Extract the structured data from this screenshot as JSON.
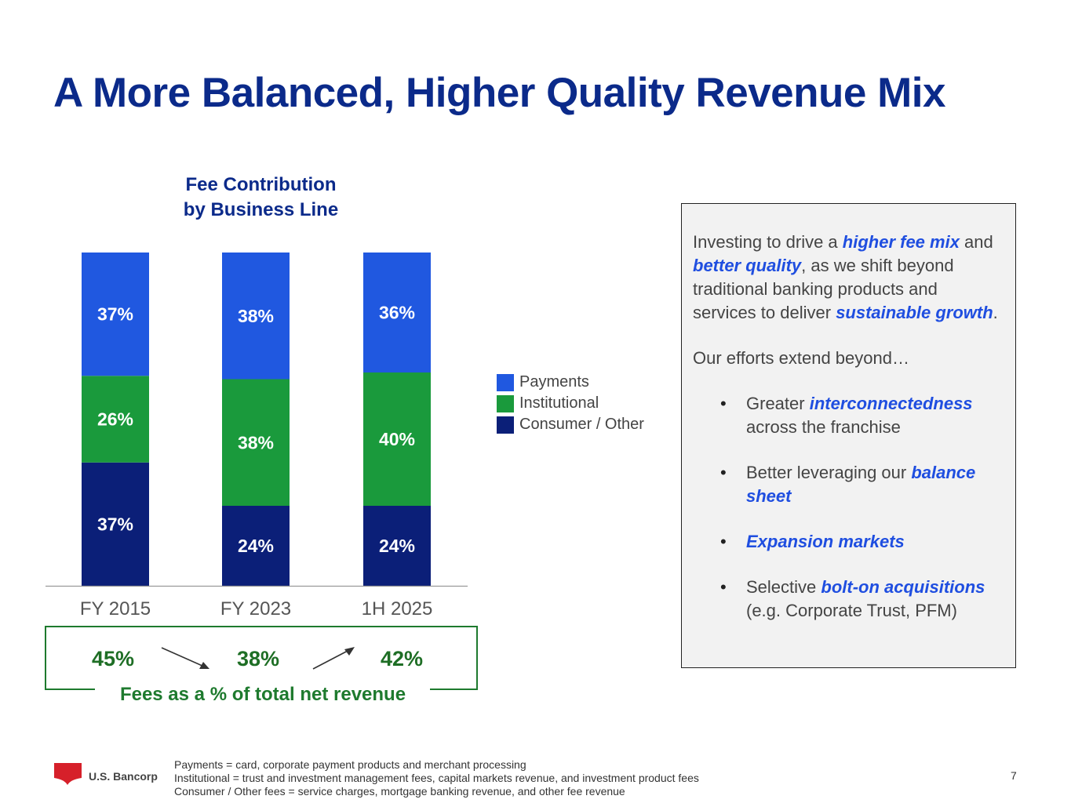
{
  "slide": {
    "title": "A More Balanced, Higher Quality Revenue Mix",
    "page_number": "7"
  },
  "chart_data": {
    "type": "bar",
    "stacked": true,
    "title": "Fee Contribution by Business Line",
    "title_lines": [
      "Fee Contribution",
      "by Business Line"
    ],
    "categories": [
      "FY 2015",
      "FY 2023",
      "1H 2025"
    ],
    "series": [
      {
        "name": "Consumer / Other",
        "color": "#0b1f78",
        "values": [
          37,
          24,
          24
        ],
        "labels": [
          "37%",
          "24%",
          "24%"
        ]
      },
      {
        "name": "Institutional",
        "color": "#1a9a3c",
        "values": [
          26,
          38,
          40
        ],
        "labels": [
          "26%",
          "38%",
          "40%"
        ]
      },
      {
        "name": "Payments",
        "color": "#2058e0",
        "values": [
          37,
          38,
          36
        ],
        "labels": [
          "37%",
          "38%",
          "36%"
        ]
      }
    ],
    "legend": [
      "Payments",
      "Institutional",
      "Consumer / Other"
    ],
    "legend_position": "right",
    "ylim": [
      0,
      100
    ],
    "grid": false
  },
  "fees_share": {
    "caption": "Fees as a % of total net revenue",
    "values": [
      "45%",
      "38%",
      "42%"
    ],
    "color": "#1e6e25"
  },
  "panel": {
    "intro": {
      "t1": "Investing to drive a ",
      "e1": "higher fee mix",
      "t2": " and ",
      "e2": "better quality",
      "t3": ", as we shift beyond traditional banking products and services to deliver ",
      "e3": "sustainable growth",
      "t4": "."
    },
    "lead": "Our efforts extend beyond…",
    "bullets": [
      {
        "pre": "Greater ",
        "em": "interconnectedness",
        "post": " across the franchise"
      },
      {
        "pre": "Better leveraging our ",
        "em": "balance sheet",
        "post": ""
      },
      {
        "pre": "",
        "em": "Expansion markets",
        "post": ""
      },
      {
        "pre": "Selective ",
        "em": "bolt-on acquisitions",
        "post": " (e.g. Corporate Trust, PFM)"
      }
    ]
  },
  "logo": {
    "text": "U.S. Bancorp"
  },
  "footnotes": [
    "Payments = card, corporate payment products and merchant processing",
    "Institutional = trust and investment management fees, capital markets revenue, and investment product fees",
    "Consumer / Other fees = service charges, mortgage banking revenue, and other fee revenue"
  ]
}
